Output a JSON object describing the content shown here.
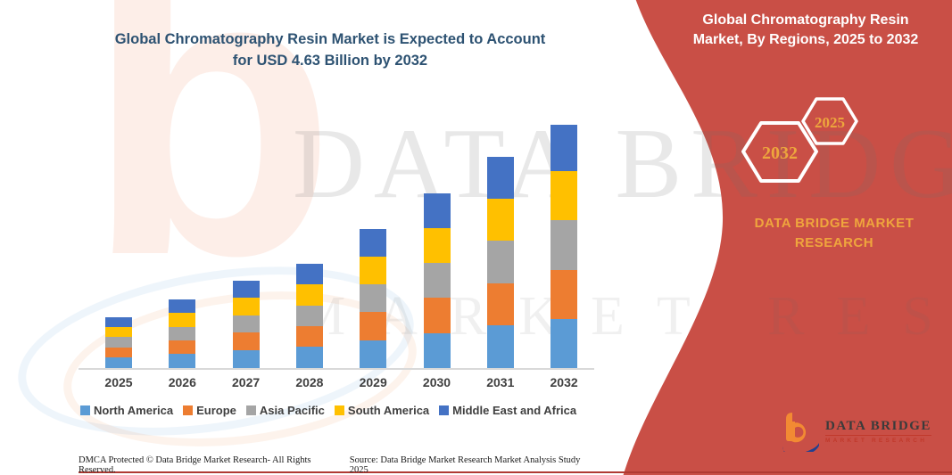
{
  "header": {
    "title_line1": "Global Chromatography Resin Market is Expected to Account",
    "title_line2": "for USD 4.63 Billion by 2032",
    "title_color": "#2d5272"
  },
  "side_panel": {
    "panel_color": "#c94f46",
    "title_line1": "Global Chromatography Resin",
    "title_line2": "Market, By Regions, 2025 to 2032",
    "hexagon_left_year": "2032",
    "hexagon_right_year": "2025",
    "year_text_color": "#eda63d",
    "brand_line1": "DATA BRIDGE MARKET",
    "brand_line2": "RESEARCH",
    "brand_text_color": "#efa53d"
  },
  "chart_data": {
    "type": "bar",
    "stacked": true,
    "title": "Global Chromatography Resin Market is Expected to Account for USD 4.63 Billion by 2032",
    "unit": "USD Billion",
    "categories": [
      "2025",
      "2026",
      "2027",
      "2028",
      "2029",
      "2030",
      "2031",
      "2032"
    ],
    "series": [
      {
        "name": "North America",
        "color": "#5b9bd5",
        "values": [
          0.2,
          0.27,
          0.34,
          0.4,
          0.53,
          0.67,
          0.81,
          0.94
        ]
      },
      {
        "name": "Europe",
        "color": "#ed7d31",
        "values": [
          0.19,
          0.26,
          0.33,
          0.4,
          0.54,
          0.67,
          0.8,
          0.92
        ]
      },
      {
        "name": "Asia Pacific",
        "color": "#a5a5a5",
        "values": [
          0.2,
          0.26,
          0.33,
          0.39,
          0.52,
          0.66,
          0.81,
          0.96
        ]
      },
      {
        "name": "South America",
        "color": "#ffc000",
        "values": [
          0.19,
          0.26,
          0.33,
          0.4,
          0.53,
          0.66,
          0.8,
          0.92
        ]
      },
      {
        "name": "Middle East and Africa",
        "color": "#4472c4",
        "values": [
          0.19,
          0.26,
          0.33,
          0.39,
          0.53,
          0.67,
          0.8,
          0.89
        ]
      }
    ],
    "totals": [
      0.97,
      1.31,
      1.66,
      1.98,
      2.65,
      3.33,
      4.02,
      4.63
    ],
    "ylim": [
      0,
      4.8
    ],
    "y_axis_shown": false,
    "grid": false,
    "legend_position": "bottom"
  },
  "watermarks": {
    "logo_letter": "b",
    "main_text": "DATA BRIDGE",
    "sub_text": "MARKET RESEARCH"
  },
  "footer": {
    "dmca": "DMCA Protected © Data Bridge Market Research-  All Rights Reserved.",
    "source": "Source: Data Bridge Market Research  Market Analysis Study 2025"
  },
  "logo": {
    "mark_letter": "b",
    "name": "DATA BRIDGE",
    "tagline": "MARKET RESEARCH",
    "mark_orange": "#f28a33",
    "mark_blue": "#23408f"
  }
}
